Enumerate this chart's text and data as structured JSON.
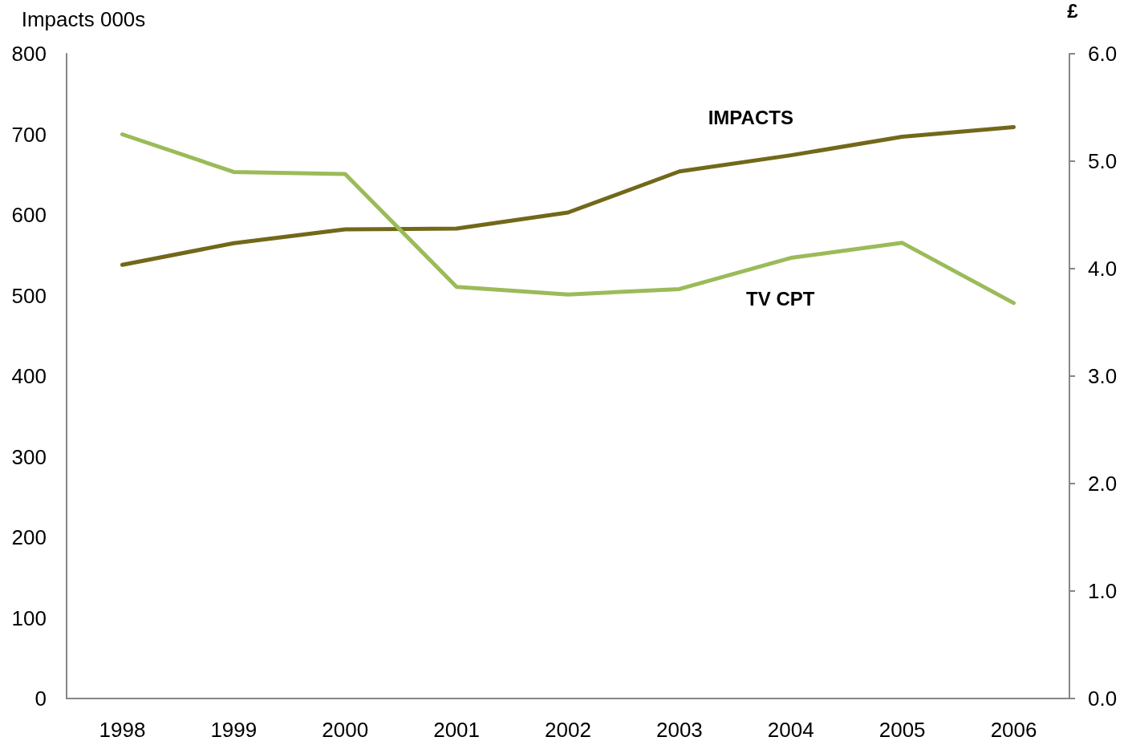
{
  "chart_data": {
    "type": "line",
    "categories": [
      "1998",
      "1999",
      "2000",
      "2001",
      "2002",
      "2003",
      "2004",
      "2005",
      "2006"
    ],
    "ylabel": "Impacts 000s",
    "y2label": "£",
    "ylim": [
      0,
      800
    ],
    "yticks": [
      0,
      100,
      200,
      300,
      400,
      500,
      600,
      700,
      800
    ],
    "y2lim": [
      0,
      6
    ],
    "y2ticks": [
      {
        "value": 0,
        "label": "0.0"
      },
      {
        "value": 1,
        "label": "1.0"
      },
      {
        "value": 2,
        "label": "2.0"
      },
      {
        "value": 3,
        "label": "3.0"
      },
      {
        "value": 4,
        "label": "4.0"
      },
      {
        "value": 5,
        "label": "5.0"
      },
      {
        "value": 6,
        "label": "6.0"
      }
    ],
    "series": [
      {
        "name": "IMPACTS",
        "color": "#72681a",
        "values": [
          538,
          565,
          582,
          583,
          603,
          654,
          674,
          697,
          709
        ]
      },
      {
        "name": "TV CPT",
        "color": "#9bbb59",
        "axis": "y2",
        "values": [
          5.25,
          4.9,
          4.88,
          3.83,
          3.76,
          3.81,
          4.1,
          4.24,
          3.68
        ]
      }
    ],
    "marker": "none",
    "line_style": "solid"
  }
}
